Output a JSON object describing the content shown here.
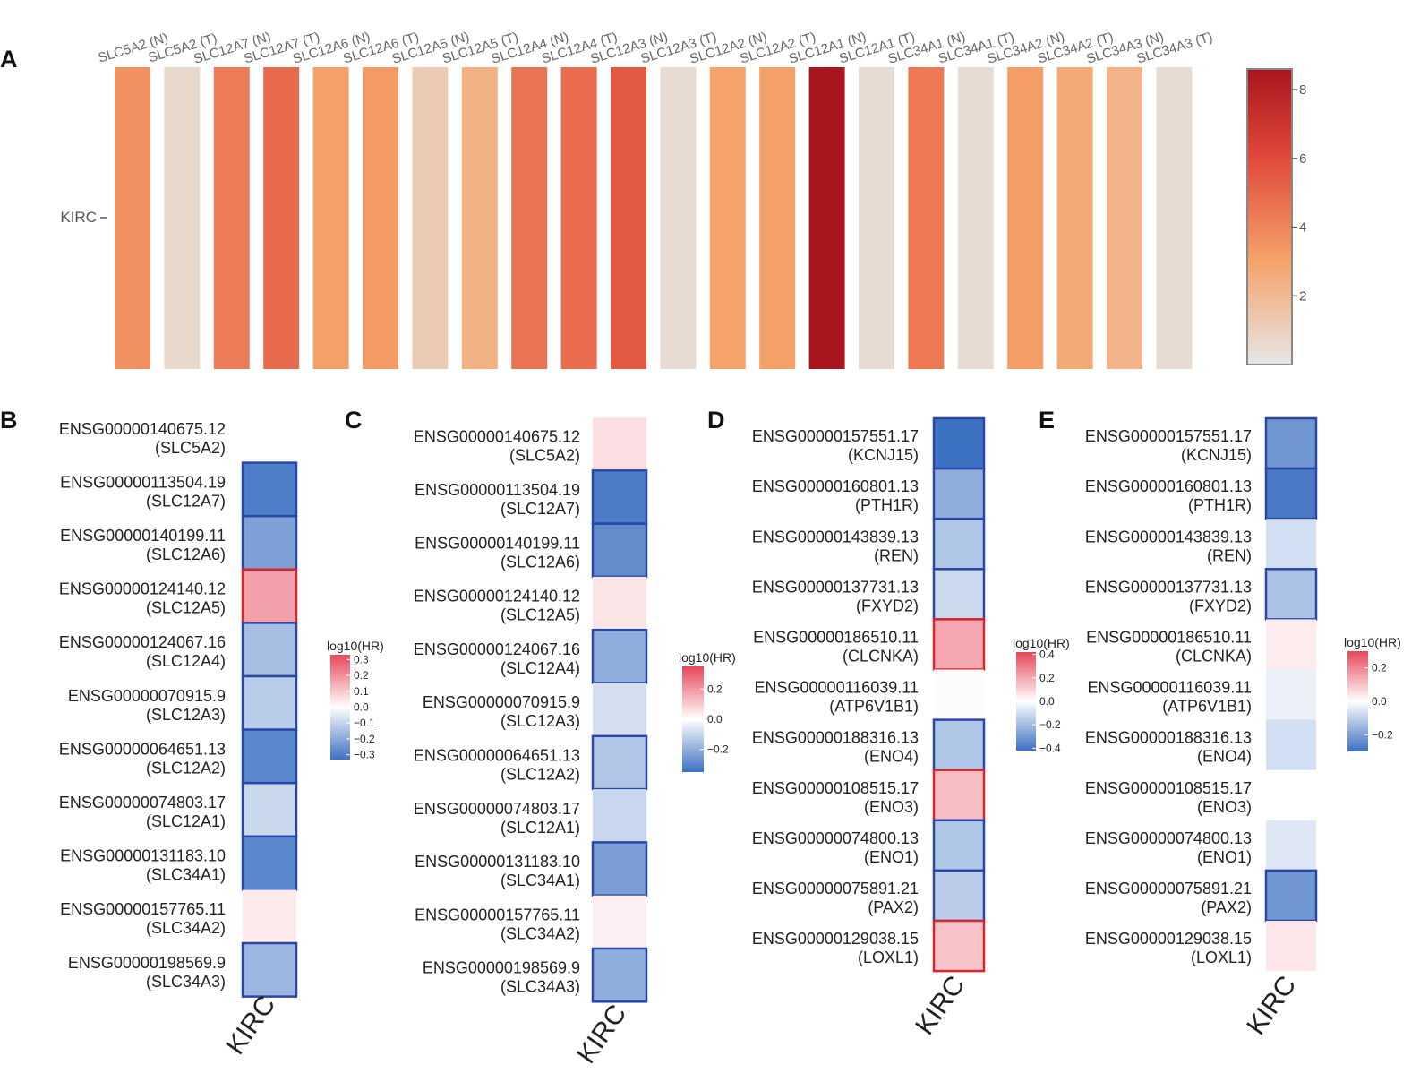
{
  "panel_labels": [
    "A",
    "B",
    "C",
    "D",
    "E"
  ],
  "chart_data": [
    {
      "panel": "A",
      "type": "heatmap",
      "row_label": "KIRC",
      "columns": [
        "SLC5A2 (N)",
        "SLC5A2 (T)",
        "SLC12A7 (N)",
        "SLC12A7 (T)",
        "SLC12A6 (N)",
        "SLC12A6 (T)",
        "SLC12A5 (N)",
        "SLC12A5 (T)",
        "SLC12A4 (N)",
        "SLC12A4 (T)",
        "SLC12A3 (N)",
        "SLC12A3 (T)",
        "SLC12A2 (N)",
        "SLC12A2 (T)",
        "SLC12A1 (N)",
        "SLC12A1 (T)",
        "SLC34A1 (N)",
        "SLC34A1 (T)",
        "SLC34A2 (N)",
        "SLC34A2 (T)",
        "SLC34A3 (N)",
        "SLC34A3 (T)"
      ],
      "values": [
        3.6,
        0.6,
        4.3,
        4.9,
        3.1,
        3.3,
        1.2,
        2.4,
        4.6,
        4.8,
        5.5,
        0.5,
        3.0,
        3.1,
        8.6,
        0.5,
        4.4,
        0.5,
        3.2,
        2.7,
        2.3,
        0.5
      ],
      "colorbar": {
        "ticks": [
          "2",
          "4",
          "6",
          "8"
        ],
        "range": [
          0,
          8.6
        ]
      },
      "colors": {
        "low": "#e6e6e6",
        "mid": "#f5a36a",
        "high": "#a8151c"
      }
    },
    {
      "panel": "B",
      "type": "heatmap",
      "column_label": "KIRC",
      "rows": [
        {
          "id": "ENSG00000140675.12",
          "gene": "SLC5A2",
          "value": null,
          "boxed": false
        },
        {
          "id": "ENSG00000113504.19",
          "gene": "SLC12A7",
          "value": -0.3,
          "boxed": true
        },
        {
          "id": "ENSG00000140199.11",
          "gene": "SLC12A6",
          "value": -0.22,
          "boxed": true
        },
        {
          "id": "ENSG00000124140.12",
          "gene": "SLC12A5",
          "value": 0.17,
          "boxed": true
        },
        {
          "id": "ENSG00000124067.16",
          "gene": "SLC12A4",
          "value": -0.15,
          "boxed": true
        },
        {
          "id": "ENSG00000070915.9",
          "gene": "SLC12A3",
          "value": -0.12,
          "boxed": true
        },
        {
          "id": "ENSG00000064651.13",
          "gene": "SLC12A2",
          "value": -0.28,
          "boxed": true
        },
        {
          "id": "ENSG00000074803.17",
          "gene": "SLC12A1",
          "value": -0.09,
          "boxed": true
        },
        {
          "id": "ENSG00000131183.10",
          "gene": "SLC34A1",
          "value": -0.28,
          "boxed": true
        },
        {
          "id": "ENSG00000157765.11",
          "gene": "SLC34A2",
          "value": 0.04,
          "boxed": false
        },
        {
          "id": "ENSG00000198569.9",
          "gene": "SLC34A3",
          "value": -0.17,
          "boxed": true
        }
      ],
      "colorbar": {
        "title": "log10(HR)",
        "ticks": [
          "0.3",
          "0.2",
          "0.1",
          "0.0",
          "−0.1",
          "−0.2",
          "−0.3"
        ],
        "range": [
          -0.33,
          0.33
        ]
      }
    },
    {
      "panel": "C",
      "type": "heatmap",
      "column_label": "KIRC",
      "rows": [
        {
          "id": "ENSG00000140675.12",
          "gene": "SLC5A2",
          "value": 0.06,
          "boxed": false
        },
        {
          "id": "ENSG00000113504.19",
          "gene": "SLC12A7",
          "value": -0.32,
          "boxed": true
        },
        {
          "id": "ENSG00000140199.11",
          "gene": "SLC12A6",
          "value": -0.28,
          "boxed": true
        },
        {
          "id": "ENSG00000124140.12",
          "gene": "SLC12A5",
          "value": 0.05,
          "boxed": false
        },
        {
          "id": "ENSG00000124067.16",
          "gene": "SLC12A4",
          "value": -0.2,
          "boxed": true
        },
        {
          "id": "ENSG00000070915.9",
          "gene": "SLC12A3",
          "value": -0.08,
          "boxed": false
        },
        {
          "id": "ENSG00000064651.13",
          "gene": "SLC12A2",
          "value": -0.14,
          "boxed": true
        },
        {
          "id": "ENSG00000074803.17",
          "gene": "SLC12A1",
          "value": -0.1,
          "boxed": false
        },
        {
          "id": "ENSG00000131183.10",
          "gene": "SLC34A1",
          "value": -0.24,
          "boxed": true
        },
        {
          "id": "ENSG00000157765.11",
          "gene": "SLC34A2",
          "value": 0.03,
          "boxed": false
        },
        {
          "id": "ENSG00000198569.9",
          "gene": "SLC34A3",
          "value": -0.2,
          "boxed": true
        }
      ],
      "colorbar": {
        "title": "log10(HR)",
        "ticks": [
          "0.2",
          "0.0",
          "−0.2"
        ],
        "range": [
          -0.35,
          0.35
        ]
      }
    },
    {
      "panel": "D",
      "type": "heatmap",
      "column_label": "KIRC",
      "rows": [
        {
          "id": "ENSG00000157551.17",
          "gene": "KCNJ15",
          "value": -0.42,
          "boxed": true
        },
        {
          "id": "ENSG00000160801.13",
          "gene": "PTH1R",
          "value": -0.24,
          "boxed": true
        },
        {
          "id": "ENSG00000143839.13",
          "gene": "REN",
          "value": -0.17,
          "boxed": true
        },
        {
          "id": "ENSG00000137731.13",
          "gene": "FXYD2",
          "value": -0.11,
          "boxed": true
        },
        {
          "id": "ENSG00000186510.11",
          "gene": "CLCNKA",
          "value": 0.2,
          "boxed": true
        },
        {
          "id": "ENSG00000116039.11",
          "gene": "ATP6V1B1",
          "value": 0.01,
          "boxed": false
        },
        {
          "id": "ENSG00000188316.13",
          "gene": "ENO4",
          "value": -0.17,
          "boxed": true
        },
        {
          "id": "ENSG00000108515.17",
          "gene": "ENO3",
          "value": 0.15,
          "boxed": true
        },
        {
          "id": "ENSG00000074800.13",
          "gene": "ENO1",
          "value": -0.17,
          "boxed": true
        },
        {
          "id": "ENSG00000075891.21",
          "gene": "PAX2",
          "value": -0.15,
          "boxed": true
        },
        {
          "id": "ENSG00000129038.15",
          "gene": "LOXL1",
          "value": 0.14,
          "boxed": true
        }
      ],
      "colorbar": {
        "title": "log10(HR)",
        "ticks": [
          "0.4",
          "0.2",
          "0.0",
          "−0.2",
          "−0.4"
        ],
        "range": [
          -0.42,
          0.42
        ]
      }
    },
    {
      "panel": "E",
      "type": "heatmap",
      "column_label": "KIRC",
      "rows": [
        {
          "id": "ENSG00000157551.17",
          "gene": "KCNJ15",
          "value": -0.22,
          "boxed": true
        },
        {
          "id": "ENSG00000160801.13",
          "gene": "PTH1R",
          "value": -0.28,
          "boxed": true
        },
        {
          "id": "ENSG00000143839.13",
          "gene": "REN",
          "value": -0.07,
          "boxed": false
        },
        {
          "id": "ENSG00000137731.13",
          "gene": "FXYD2",
          "value": -0.13,
          "boxed": true
        },
        {
          "id": "ENSG00000186510.11",
          "gene": "CLCNKA",
          "value": 0.03,
          "boxed": false
        },
        {
          "id": "ENSG00000116039.11",
          "gene": "ATP6V1B1",
          "value": -0.03,
          "boxed": false
        },
        {
          "id": "ENSG00000188316.13",
          "gene": "ENO4",
          "value": -0.07,
          "boxed": false
        },
        {
          "id": "ENSG00000108515.17",
          "gene": "ENO3",
          "value": null,
          "boxed": false
        },
        {
          "id": "ENSG00000074800.13",
          "gene": "ENO1",
          "value": -0.05,
          "boxed": false
        },
        {
          "id": "ENSG00000075891.21",
          "gene": "PAX2",
          "value": -0.22,
          "boxed": true
        },
        {
          "id": "ENSG00000129038.15",
          "gene": "LOXL1",
          "value": 0.04,
          "boxed": false
        }
      ],
      "colorbar": {
        "title": "log10(HR)",
        "ticks": [
          "0.2",
          "0.0",
          "−0.2"
        ],
        "range": [
          -0.3,
          0.3
        ]
      }
    }
  ],
  "diverging_colors": {
    "negative": "#3d71c2",
    "neutral": "#ffffff",
    "positive": "#e8475a",
    "box_negative": "#2a46a8",
    "box_positive": "#d9262c"
  }
}
